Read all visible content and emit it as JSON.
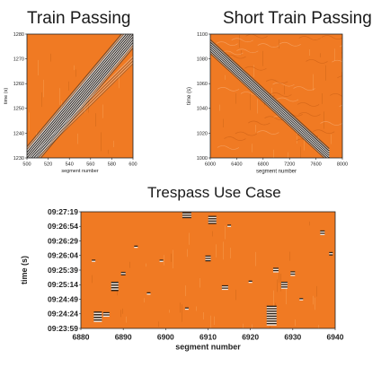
{
  "chart_data": [
    {
      "type": "heatmap",
      "title": "Train Passing",
      "xlabel": "segment number",
      "ylabel": "time (s)",
      "xlim": [
        500,
        600
      ],
      "ylim": [
        1230,
        1280
      ],
      "x_ticks": [
        "500",
        "520",
        "540",
        "560",
        "580",
        "600"
      ],
      "y_ticks": [
        "1230",
        "1240",
        "1250",
        "1260",
        "1270",
        "1280"
      ],
      "background_color": "#f07a23",
      "feature": "diagonal train signature rising from (500, 1230) to (600, 1280)"
    },
    {
      "type": "heatmap",
      "title": "Short Train Passing",
      "xlabel": "segment number",
      "ylabel": "time (s)",
      "xlim": [
        6000,
        8000
      ],
      "ylim": [
        1000,
        1100
      ],
      "x_ticks": [
        "6000",
        "6400",
        "6800",
        "7200",
        "7600",
        "8000"
      ],
      "y_ticks": [
        "1000",
        "1020",
        "1040",
        "1060",
        "1080",
        "1100"
      ],
      "background_color": "#f07a23",
      "feature": "diagonal train signature descending from (6000, 1090) to (7800, 1002)"
    },
    {
      "type": "heatmap",
      "title": "Trespass Use Case",
      "xlabel": "segment number",
      "ylabel": "time (s)",
      "xlim": [
        6880,
        6940
      ],
      "ylim": [
        "09:23:59",
        "09:27:19"
      ],
      "x_ticks": [
        "6880",
        "6890",
        "6900",
        "6910",
        "6920",
        "6930",
        "6940"
      ],
      "y_ticks": [
        "09:27:19",
        "09:26:54",
        "09:26:29",
        "09:26:04",
        "09:25:39",
        "09:25:14",
        "09:24:49",
        "09:24:24",
        "09:23:59"
      ],
      "background_color": "#f07a23",
      "feature": "scattered short footstep detections"
    }
  ],
  "colors": {
    "background": "#f07a23",
    "stripe_dark": "#1a1a1a",
    "stripe_light": "#f2f2f2"
  }
}
